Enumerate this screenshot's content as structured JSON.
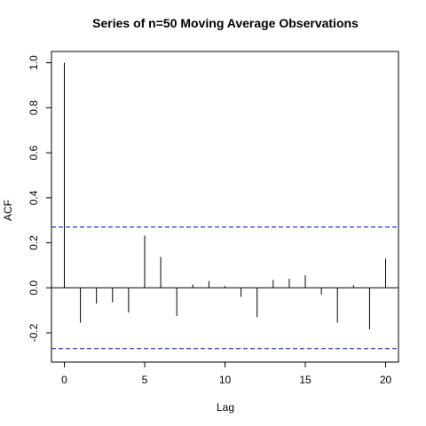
{
  "chart_data": {
    "type": "bar",
    "title": "Series of n=50 Moving Average Observations",
    "xlabel": "Lag",
    "ylabel": "ACF",
    "xlim": [
      -0.8,
      20.8
    ],
    "ylim": [
      -0.33,
      1.05
    ],
    "x_ticks": [
      0,
      5,
      10,
      15,
      20
    ],
    "x_tick_labels": [
      "0",
      "5",
      "10",
      "15",
      "20"
    ],
    "y_ticks": [
      -0.2,
      0.0,
      0.2,
      0.4,
      0.6,
      0.8,
      1.0
    ],
    "y_tick_labels": [
      "-0.2",
      "0.0",
      "0.2",
      "0.4",
      "0.6",
      "0.8",
      "1.0"
    ],
    "lags": [
      0,
      1,
      2,
      3,
      4,
      5,
      6,
      7,
      8,
      9,
      10,
      11,
      12,
      13,
      14,
      15,
      16,
      17,
      18,
      19,
      20
    ],
    "acf": [
      1.0,
      -0.155,
      -0.07,
      -0.065,
      -0.11,
      0.232,
      0.137,
      -0.125,
      0.015,
      0.03,
      0.008,
      -0.04,
      -0.13,
      0.035,
      0.04,
      0.055,
      -0.03,
      -0.155,
      0.012,
      -0.185,
      0.13
    ],
    "confidence_bounds": [
      0.27,
      -0.27
    ],
    "bound_color": "#0000cc",
    "bar_color": "#000000",
    "grid": false,
    "legend": "none"
  }
}
